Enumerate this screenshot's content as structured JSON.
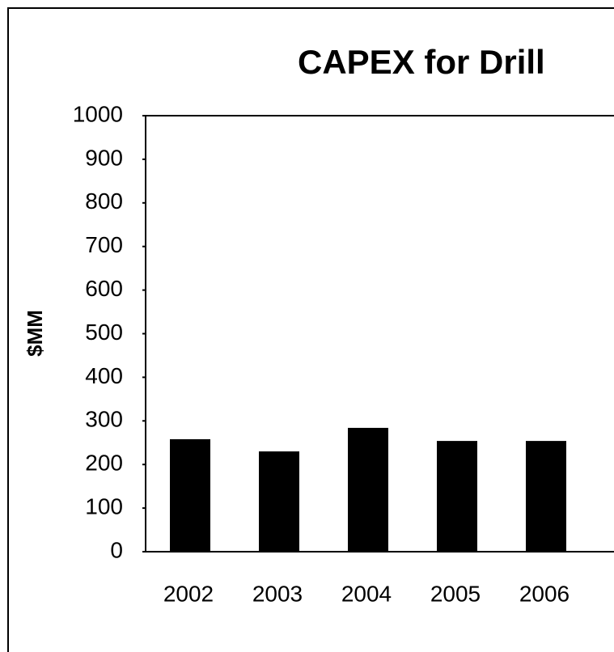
{
  "chart_data": {
    "type": "bar",
    "title": "CAPEX for Drill",
    "y_label": "$MM",
    "categories": [
      "2002",
      "2003",
      "2004",
      "2005",
      "2006"
    ],
    "values": [
      258,
      230,
      284,
      254,
      254
    ],
    "color": "#000000",
    "ylim": [
      0,
      1000
    ],
    "yticks": [
      0,
      100,
      200,
      300,
      400,
      500,
      600,
      700,
      800,
      900,
      1000
    ],
    "grid": false
  }
}
